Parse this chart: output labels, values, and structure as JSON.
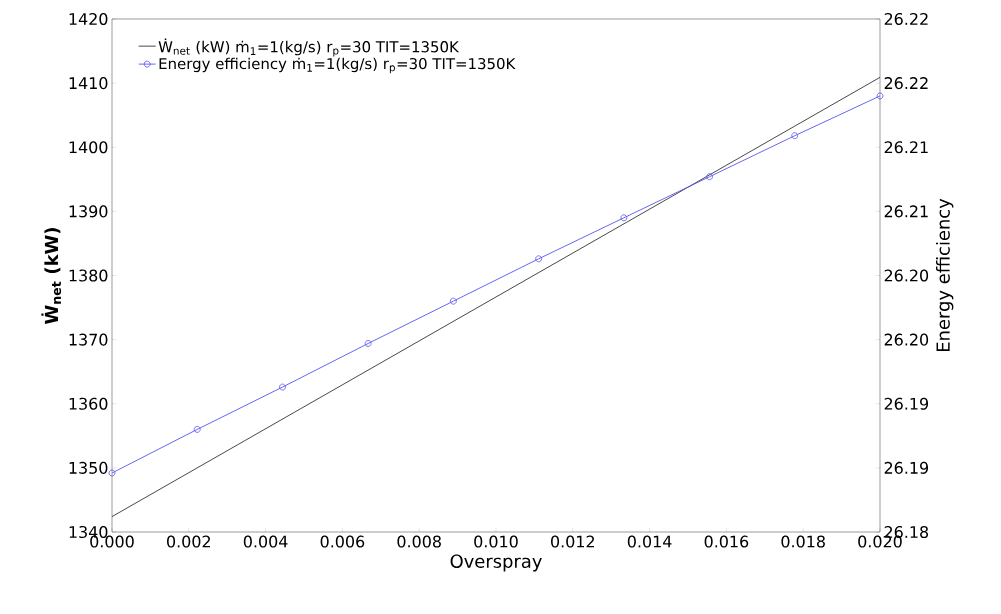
{
  "chart_data": {
    "type": "line",
    "xlabel": "Overspray",
    "ylabel": "**Ẇ$_{net}$ (kW)**",
    "y2label": "Energy efficiency",
    "xlim": [
      0,
      0.02
    ],
    "ylim": [
      1340,
      1420
    ],
    "y2lim": [
      26.18,
      26.22
    ],
    "xticks": [
      {
        "value": 0,
        "label": "0.000"
      },
      {
        "value": 0.002,
        "label": "0.002"
      },
      {
        "value": 0.004,
        "label": "0.004"
      },
      {
        "value": 0.006,
        "label": "0.006"
      },
      {
        "value": 0.008,
        "label": "0.008"
      },
      {
        "value": 0.01,
        "label": "0.010"
      },
      {
        "value": 0.012,
        "label": "0.012"
      },
      {
        "value": 0.014,
        "label": "0.014"
      },
      {
        "value": 0.016,
        "label": "0.016"
      },
      {
        "value": 0.018,
        "label": "0.018"
      },
      {
        "value": 0.02,
        "label": "0.020"
      }
    ],
    "yticks": [
      1340,
      1350,
      1360,
      1370,
      1380,
      1390,
      1400,
      1410,
      1420
    ],
    "y2ticks": [
      {
        "value": 26.18,
        "label": "26.18"
      },
      {
        "value": 26.185,
        "label": "26.19"
      },
      {
        "value": 26.19,
        "label": "26.19"
      },
      {
        "value": 26.195,
        "label": "26.20"
      },
      {
        "value": 26.2,
        "label": "26.20"
      },
      {
        "value": 26.205,
        "label": "26.21"
      },
      {
        "value": 26.21,
        "label": "26.21"
      },
      {
        "value": 26.215,
        "label": "26.22"
      },
      {
        "value": 26.22,
        "label": "26.22"
      }
    ],
    "legend": "top left",
    "grid": false,
    "series": [
      {
        "name": "Ẇ$_{net}$ (kW) ṁ$_{1}$=1(kg/s) r$_{p}$=30 TIT=1350K",
        "color": "#333333",
        "x": [
          0,
          0.02
        ],
        "values": [
          1342.4,
          1410.9
        ],
        "marker": "none"
      },
      {
        "name": "Energy efficiency ṁ$_{1}$=1(kg/s) r$_{p}$=30 TIT=1350K",
        "color": "#5555ee",
        "axis": "y2",
        "marker": "circle",
        "x": [
          0,
          0.00222,
          0.00444,
          0.00667,
          0.00889,
          0.01111,
          0.01333,
          0.01556,
          0.01778,
          0.02
        ],
        "values": [
          26.1846,
          26.188,
          26.1913,
          26.1947,
          26.198,
          26.2013,
          26.2045,
          26.2077,
          26.2109,
          26.214
        ]
      }
    ]
  }
}
